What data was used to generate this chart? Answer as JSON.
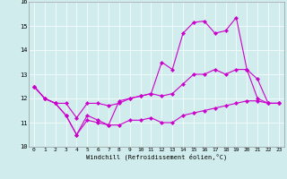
{
  "title": "",
  "xlabel": "Windchill (Refroidissement éolien,°C)",
  "xlim": [
    -0.5,
    23.5
  ],
  "ylim": [
    10,
    16
  ],
  "yticks": [
    10,
    11,
    12,
    13,
    14,
    15,
    16
  ],
  "xticks": [
    0,
    1,
    2,
    3,
    4,
    5,
    6,
    7,
    8,
    9,
    10,
    11,
    12,
    13,
    14,
    15,
    16,
    17,
    18,
    19,
    20,
    21,
    22,
    23
  ],
  "background_color": "#d0ecec",
  "line_color": "#cc00cc",
  "series": [
    [
      12.5,
      12.0,
      11.8,
      11.3,
      10.5,
      11.1,
      11.0,
      10.9,
      10.9,
      11.1,
      11.1,
      11.2,
      11.0,
      11.0,
      11.3,
      11.4,
      11.5,
      11.6,
      11.7,
      11.8,
      11.9,
      11.9,
      11.8,
      11.8
    ],
    [
      12.5,
      12.0,
      11.8,
      11.8,
      11.2,
      11.8,
      11.8,
      11.7,
      11.8,
      12.0,
      12.1,
      12.2,
      12.1,
      12.2,
      12.6,
      13.0,
      13.0,
      13.2,
      13.0,
      13.2,
      13.2,
      12.8,
      11.8,
      11.8
    ],
    [
      12.5,
      12.0,
      11.8,
      11.3,
      10.5,
      11.3,
      11.1,
      10.9,
      11.9,
      12.0,
      12.1,
      12.2,
      13.5,
      13.2,
      14.7,
      15.15,
      15.2,
      14.7,
      14.8,
      15.35,
      13.2,
      12.0,
      11.8,
      11.8
    ]
  ]
}
